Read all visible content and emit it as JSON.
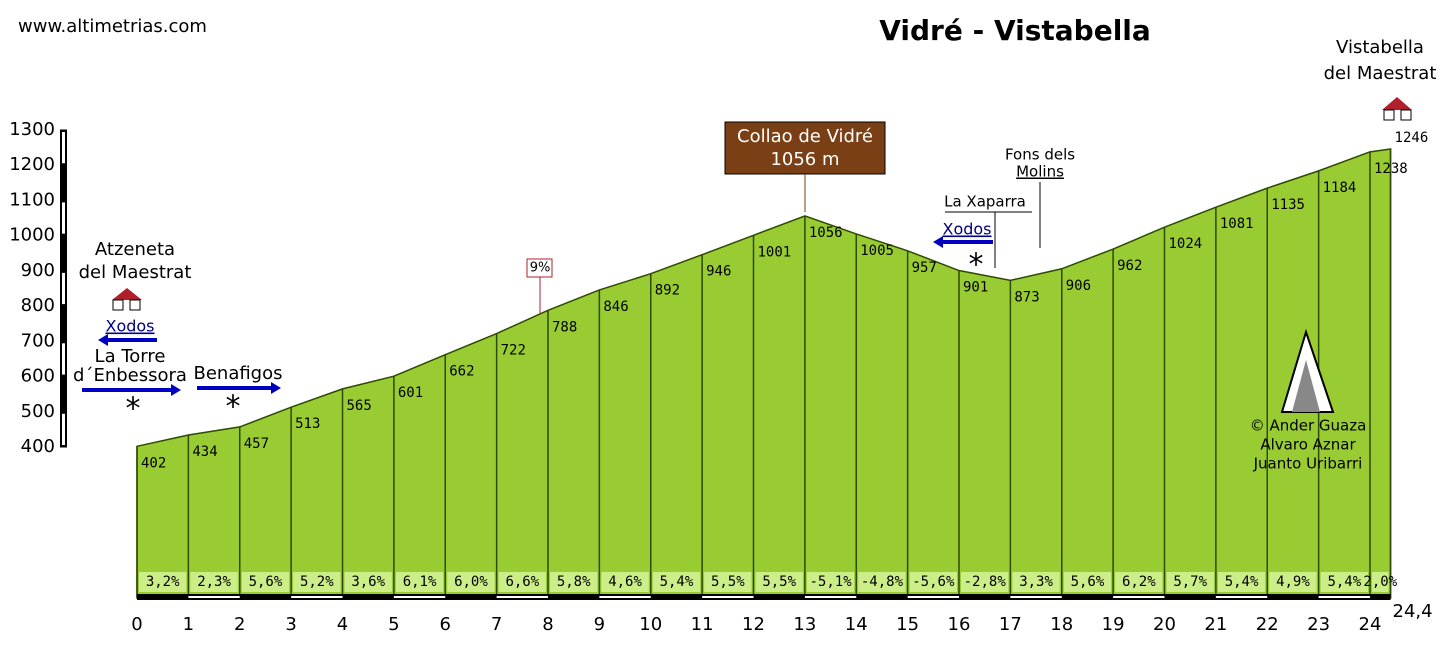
{
  "chart_data": {
    "type": "area",
    "title": "Vidré - Vistabella",
    "site": "www.altimetrias.com",
    "x": [
      0,
      1,
      2,
      3,
      4,
      5,
      6,
      7,
      8,
      9,
      10,
      11,
      12,
      13,
      14,
      15,
      16,
      17,
      18,
      19,
      20,
      21,
      22,
      23,
      24,
      24.4
    ],
    "values": [
      402,
      434,
      457,
      513,
      565,
      601,
      662,
      722,
      788,
      846,
      892,
      946,
      1001,
      1056,
      1005,
      957,
      901,
      873,
      906,
      962,
      1024,
      1081,
      1135,
      1184,
      1238,
      1246
    ],
    "color": "#99cc33",
    "gradient_labels": [
      "3,2%",
      "2,3%",
      "5,6%",
      "5,2%",
      "3,6%",
      "6,1%",
      "6,0%",
      "6,6%",
      "5,8%",
      "4,6%",
      "5,4%",
      "5,5%",
      "5,5%",
      "-5,1%",
      "-4,8%",
      "-5,6%",
      "-2,8%",
      "3,3%",
      "5,6%",
      "6,2%",
      "5,7%",
      "5,4%",
      "4,9%",
      "5,4%",
      "2,0%"
    ],
    "xlim": [
      0,
      24.4
    ],
    "xticks": [
      0,
      1,
      2,
      3,
      4,
      5,
      6,
      7,
      8,
      9,
      10,
      11,
      12,
      13,
      14,
      15,
      16,
      17,
      18,
      19,
      20,
      21,
      22,
      23,
      24,
      {
        "value": 24.4,
        "label": "24,4"
      }
    ],
    "ylim": [
      400,
      1300
    ],
    "yticks": [
      400,
      500,
      600,
      700,
      800,
      900,
      1000,
      1100,
      1200,
      1300
    ],
    "annotations": {
      "start": [
        "Atzeneta",
        "del Maestrat"
      ],
      "end": [
        "Vistabella",
        "del Maestrat"
      ],
      "pass": [
        "Collao de Vidré",
        "1056 m"
      ],
      "fons": [
        "Fons dels",
        "Molins"
      ],
      "xaparra": "La Xaparra",
      "xodos_left": "Xodos",
      "xodos_right": "Xodos",
      "torre": [
        "La Torre",
        "d´Enbessora"
      ],
      "benafigos": "Benafigos",
      "max_gradient": "9%",
      "credits": [
        "© Ander Guaza",
        "Alvaro Aznar",
        "Juanto Uribarri"
      ]
    }
  }
}
